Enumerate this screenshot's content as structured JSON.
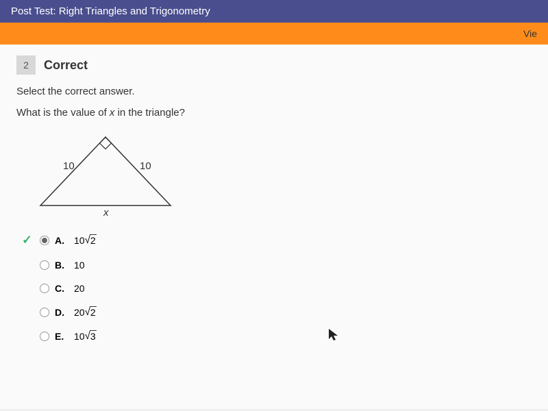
{
  "nav": {
    "title": "Post Test: Right Triangles and Trigonometry",
    "sub_link": "Vie"
  },
  "question": {
    "number": "2",
    "status": "Correct",
    "instruction": "Select the correct answer.",
    "text_prefix": "What is the value of ",
    "text_var": "x",
    "text_suffix": " in the triangle?"
  },
  "triangle": {
    "side_left": "10",
    "side_right": "10",
    "base": "x",
    "stroke": "#333333",
    "stroke_width": 1.5
  },
  "options": [
    {
      "letter": "A.",
      "prefix": "10",
      "sqrt": "2",
      "selected": true,
      "correct": true
    },
    {
      "letter": "B.",
      "prefix": "10",
      "sqrt": null,
      "selected": false,
      "correct": false
    },
    {
      "letter": "C.",
      "prefix": "20",
      "sqrt": null,
      "selected": false,
      "correct": false
    },
    {
      "letter": "D.",
      "prefix": "20",
      "sqrt": "2",
      "selected": false,
      "correct": false
    },
    {
      "letter": "E.",
      "prefix": "10",
      "sqrt": "3",
      "selected": false,
      "correct": false
    }
  ]
}
